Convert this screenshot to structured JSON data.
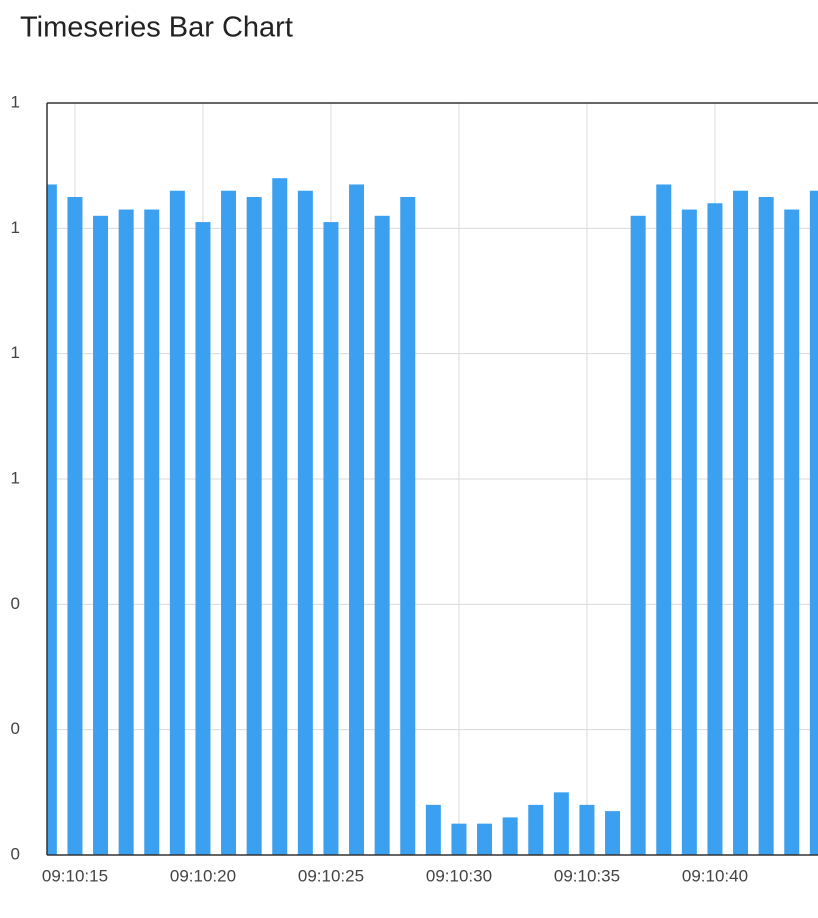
{
  "chart_data": {
    "type": "bar",
    "title": "Timeseries Bar Chart",
    "x": [
      "09:10:14",
      "09:10:15",
      "09:10:16",
      "09:10:17",
      "09:10:18",
      "09:10:19",
      "09:10:20",
      "09:10:21",
      "09:10:22",
      "09:10:23",
      "09:10:24",
      "09:10:25",
      "09:10:26",
      "09:10:27",
      "09:10:28",
      "09:10:29",
      "09:10:30",
      "09:10:31",
      "09:10:32",
      "09:10:33",
      "09:10:34",
      "09:10:35",
      "09:10:36",
      "09:10:37",
      "09:10:38",
      "09:10:39",
      "09:10:40",
      "09:10:41",
      "09:10:42",
      "09:10:43",
      "09:10:44"
    ],
    "values": [
      1.07,
      1.05,
      1.02,
      1.03,
      1.03,
      1.06,
      1.01,
      1.06,
      1.05,
      1.08,
      1.06,
      1.01,
      1.07,
      1.02,
      1.05,
      0.08,
      0.05,
      0.05,
      0.06,
      0.08,
      0.1,
      0.08,
      0.07,
      1.02,
      1.07,
      1.03,
      1.04,
      1.06,
      1.05,
      1.03,
      1.06
    ],
    "color": "#3ca0f0",
    "ylim": [
      0,
      1.2
    ],
    "yticks": [
      0,
      {
        "value": 0.2,
        "label": "0"
      },
      {
        "value": 0.4,
        "label": "0"
      },
      {
        "value": 0.6,
        "label": "1"
      },
      {
        "value": 0.8,
        "label": "1"
      },
      {
        "value": 1.0,
        "label": "1"
      },
      {
        "value": 1.2,
        "label": "1"
      }
    ],
    "xticks": [
      "09:10:15",
      "09:10:20",
      "09:10:25",
      "09:10:30",
      "09:10:35",
      "09:10:40"
    ],
    "grid": true
  }
}
